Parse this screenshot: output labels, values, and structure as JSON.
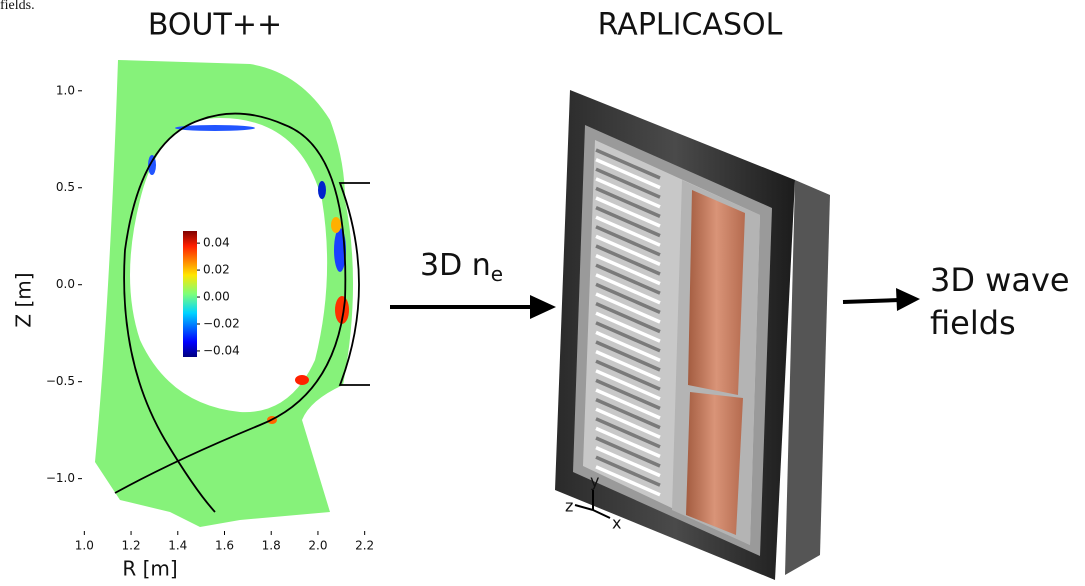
{
  "fragment": "fields.",
  "left_panel": {
    "title": "BOUT++",
    "x_label": "R [m]",
    "y_label": "Z [m]",
    "xlim": [
      0.99,
      2.21
    ],
    "ylim": [
      -1.27,
      1.2
    ],
    "xticks": [
      {
        "value": 1,
        "label": "1.0"
      },
      1.2,
      1.4,
      1.6,
      1.8,
      {
        "value": 2,
        "label": "2.0"
      },
      2.2
    ],
    "yticks": [
      {
        "value": 1,
        "label": "1.0"
      },
      0.5,
      {
        "value": 0,
        "label": "0.0"
      },
      {
        "value": -0.5,
        "label": "−0.5"
      },
      {
        "value": -1,
        "label": "−1.0"
      }
    ],
    "colorbar": {
      "lim": [
        -0.0445,
        0.049
      ],
      "ticks": [
        0.04,
        0.02,
        {
          "value": 0,
          "label": "0.00"
        },
        {
          "value": -0.02,
          "label": "−0.02"
        },
        {
          "value": -0.04,
          "label": "−0.04"
        }
      ]
    }
  },
  "arrow_1": {
    "label": "3D n",
    "subscript": "e"
  },
  "right_panel": {
    "title": "RAPLICASOL",
    "axes": [
      "z",
      "y",
      "x"
    ]
  },
  "arrow_2": {
    "label_lines": [
      "3D wave",
      "fields"
    ]
  }
}
